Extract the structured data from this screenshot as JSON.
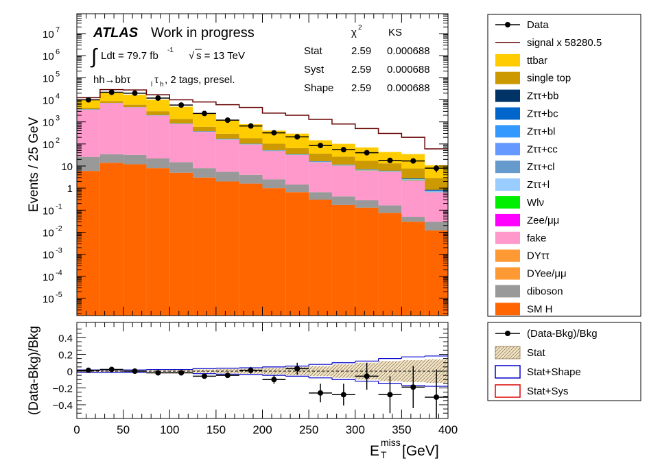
{
  "chart_data": [
    {
      "type": "bar",
      "subtype": "stacked-histogram",
      "yscale": "log",
      "ylabel": "Events / 25 GeV",
      "xlim": [
        0,
        400
      ],
      "ylim_label_range": [
        "10^-5",
        "10^7"
      ],
      "bins": [
        0,
        25,
        50,
        75,
        100,
        125,
        150,
        175,
        200,
        225,
        250,
        275,
        300,
        325,
        350,
        375,
        400
      ],
      "atlas_label": "ATLAS",
      "status_label": "Work in progress",
      "lumi_label": "Ldt = 79.7 fb",
      "lumi_exp": "-1",
      "energy_label": "s = 13 TeV",
      "channel_label": "hh→bbτ",
      "channel_suffix": ", 2 tags, presel.",
      "stats_table": {
        "headers": [
          "",
          "χ",
          "KS"
        ],
        "rows": [
          {
            "label": "Stat",
            "chi2": "2.59",
            "ks": "0.000688"
          },
          {
            "label": "Syst",
            "chi2": "2.59",
            "ks": "0.000688"
          },
          {
            "label": "Shape",
            "chi2": "2.59",
            "ks": "0.000688"
          }
        ]
      },
      "y_ticks": [
        {
          "pow": 7,
          "label": "10",
          "exp": "7"
        },
        {
          "pow": 6,
          "label": "10",
          "exp": "6"
        },
        {
          "pow": 5,
          "label": "10",
          "exp": "5"
        },
        {
          "pow": 4,
          "label": "10",
          "exp": "4"
        },
        {
          "pow": 3,
          "label": "10",
          "exp": "3"
        },
        {
          "pow": 2,
          "label": "10",
          "exp": "2"
        },
        {
          "pow": 1,
          "label": "10",
          "exp": ""
        },
        {
          "pow": 0,
          "label": "1",
          "exp": ""
        },
        {
          "pow": -1,
          "label": "10",
          "exp": "-1"
        },
        {
          "pow": -2,
          "label": "10",
          "exp": "-2"
        },
        {
          "pow": -3,
          "label": "10",
          "exp": "-3"
        },
        {
          "pow": -4,
          "label": "10",
          "exp": "-4"
        },
        {
          "pow": -5,
          "label": "10",
          "exp": "-5"
        }
      ],
      "stack": [
        {
          "name": "SM H",
          "color": "#ff6600",
          "values": [
            6,
            14,
            12,
            8,
            5,
            3,
            2,
            1.6,
            1,
            0.65,
            0.3,
            0.17,
            0.13,
            0.075,
            0.03,
            0.012
          ]
        },
        {
          "name": "diboson",
          "color": "#999999",
          "values": [
            20,
            20,
            20,
            14,
            10,
            5,
            3.5,
            2.4,
            1.5,
            0.8,
            0.35,
            0.25,
            0.15,
            0.09,
            0.02,
            0.018
          ]
        },
        {
          "name": "DYee/μμ",
          "color": "#ff9933",
          "values": [
            0,
            0,
            0,
            0,
            0,
            0,
            0,
            0,
            0,
            0,
            0,
            0,
            0,
            0,
            0,
            0
          ]
        },
        {
          "name": "DYττ",
          "color": "#ff9933",
          "values": [
            0,
            0,
            0,
            0,
            0,
            0,
            0,
            0,
            0,
            0,
            0,
            0,
            0,
            0,
            0,
            0
          ]
        },
        {
          "name": "fake",
          "color": "#ff99cc",
          "values": [
            3500,
            7000,
            4500,
            1900,
            780,
            340,
            150,
            90,
            45,
            30,
            14,
            10,
            6,
            5.4,
            2.2,
            0.6
          ]
        },
        {
          "name": "Zee/μμ",
          "color": "#ff00ff",
          "values": [
            10,
            8,
            6,
            4,
            3,
            2,
            1,
            0.6,
            0.4,
            0.2,
            0.1,
            0.08,
            0.05,
            0.03,
            0.02,
            0.01
          ]
        },
        {
          "name": "Wlν",
          "color": "#00ee00",
          "values": [
            30,
            20,
            15,
            10,
            6,
            3,
            2,
            1.2,
            0.6,
            0.5,
            0.3,
            0.2,
            0.15,
            0.15,
            0.15,
            0.01
          ]
        },
        {
          "name": "Zττ+l",
          "color": "#99ccff",
          "values": [
            40,
            40,
            30,
            20,
            10,
            6,
            3,
            1.5,
            0.8,
            0.5,
            0.3,
            0.2,
            0.1,
            0.08,
            0.05,
            0.04
          ]
        },
        {
          "name": "Zττ+cl",
          "color": "#6699cc",
          "values": [
            30,
            30,
            20,
            15,
            8,
            5,
            2,
            1.2,
            0.6,
            0.4,
            0.25,
            0.15,
            0.1,
            0.06,
            0.05,
            0.03
          ]
        },
        {
          "name": "Zττ+cc",
          "color": "#6699ff",
          "values": [
            20,
            20,
            15,
            10,
            5,
            3,
            1.5,
            0.8,
            0.4,
            0.3,
            0.2,
            0.1,
            0.08,
            0.05,
            0.04,
            0.02
          ]
        },
        {
          "name": "Zττ+bl",
          "color": "#3399ff",
          "values": [
            30,
            30,
            20,
            15,
            8,
            4,
            2,
            1,
            0.6,
            0.4,
            0.25,
            0.15,
            0.1,
            0.06,
            0.05,
            0.03
          ]
        },
        {
          "name": "Zττ+bc",
          "color": "#0066cc",
          "values": [
            20,
            20,
            15,
            10,
            5,
            3,
            1.5,
            0.8,
            0.4,
            0.3,
            0.2,
            0.1,
            0.08,
            0.05,
            0.04,
            0.02
          ]
        },
        {
          "name": "Zττ+bb",
          "color": "#003366",
          "values": [
            60,
            60,
            40,
            30,
            15,
            8,
            4,
            2,
            1.2,
            0.8,
            0.5,
            0.3,
            0.2,
            0.15,
            0.1,
            0.05
          ]
        },
        {
          "name": "single top",
          "color": "#cc9900",
          "values": [
            600,
            1500,
            1300,
            1000,
            500,
            220,
            120,
            80,
            50,
            30,
            20,
            15,
            10,
            7,
            5,
            2
          ]
        },
        {
          "name": "ttbar",
          "color": "#ffcc00",
          "values": [
            5700,
            12000,
            11000,
            7000,
            3500,
            1900,
            880,
            600,
            300,
            230,
            110,
            75,
            52,
            30,
            27,
            8
          ]
        }
      ],
      "signal": {
        "name": "signal x 58280.5",
        "color": "#660000",
        "values": [
          12500,
          29000,
          28000,
          17000,
          10000,
          8000,
          6000,
          4500,
          2500,
          2000,
          1300,
          800,
          500,
          300,
          200,
          60
        ]
      },
      "data": {
        "name": "Data",
        "values": [
          10000,
          22000,
          20000,
          12000,
          5800,
          2400,
          1200,
          650,
          320,
          210,
          85,
          55,
          40,
          18,
          17,
          8
        ]
      },
      "legend": [
        {
          "label": "Data",
          "type": "marker"
        },
        {
          "label": "signal x 58280.5",
          "type": "line",
          "color": "#660000"
        },
        {
          "label": "ttbar",
          "type": "fill",
          "color": "#ffcc00"
        },
        {
          "label": "single top",
          "type": "fill",
          "color": "#cc9900"
        },
        {
          "label": "Zττ+bb",
          "type": "fill",
          "color": "#003366"
        },
        {
          "label": "Zττ+bc",
          "type": "fill",
          "color": "#0066cc"
        },
        {
          "label": "Zττ+bl",
          "type": "fill",
          "color": "#3399ff"
        },
        {
          "label": "Zττ+cc",
          "type": "fill",
          "color": "#6699ff"
        },
        {
          "label": "Zττ+cl",
          "type": "fill",
          "color": "#6699cc"
        },
        {
          "label": "Zττ+l",
          "type": "fill",
          "color": "#99ccff"
        },
        {
          "label": "Wlν",
          "type": "fill",
          "color": "#00ee00"
        },
        {
          "label": "Zee/μμ",
          "type": "fill",
          "color": "#ff00ff"
        },
        {
          "label": "fake",
          "type": "fill",
          "color": "#ff99cc"
        },
        {
          "label": "DYττ",
          "type": "fill",
          "color": "#ff9933"
        },
        {
          "label": "DYee/μμ",
          "type": "fill",
          "color": "#ff9933"
        },
        {
          "label": "diboson",
          "type": "fill",
          "color": "#999999"
        },
        {
          "label": "SM H",
          "type": "fill",
          "color": "#ff6600"
        }
      ]
    },
    {
      "type": "scatter",
      "subtype": "ratio",
      "ylabel": "(Data-Bkg)/Bkg",
      "xlabel": "E",
      "xlabel_sup": "miss",
      "xlabel_sub": "T",
      "xlabel_unit": " [GeV]",
      "xlim": [
        0,
        400
      ],
      "ylim": [
        -0.55,
        0.55
      ],
      "x_ticks": [
        "0",
        "50",
        "100",
        "150",
        "200",
        "250",
        "300",
        "350",
        "400"
      ],
      "y_ticks": [
        "0.4",
        "0.2",
        "0",
        "−0.2",
        "−0.4"
      ],
      "y_tick_values": [
        0.4,
        0.2,
        0,
        -0.2,
        -0.4
      ],
      "x": [
        12.5,
        37.5,
        62.5,
        87.5,
        112.5,
        137.5,
        162.5,
        187.5,
        212.5,
        237.5,
        262.5,
        287.5,
        312.5,
        337.5,
        362.5,
        387.5
      ],
      "values": [
        0.01,
        0.02,
        0,
        -0.02,
        -0.02,
        -0.06,
        -0.05,
        0.01,
        -0.1,
        0.03,
        -0.26,
        -0.28,
        -0.06,
        -0.28,
        -0.19,
        -0.31
      ],
      "errors": [
        0.01,
        0.01,
        0.01,
        0.01,
        0.015,
        0.02,
        0.03,
        0.04,
        0.05,
        0.07,
        0.11,
        0.13,
        0.16,
        0.22,
        0.25,
        0.33
      ],
      "stat_band": [
        0.01,
        0.01,
        0.01,
        0.01,
        0.015,
        0.02,
        0.025,
        0.03,
        0.04,
        0.05,
        0.06,
        0.08,
        0.1,
        0.12,
        0.13,
        0.14
      ],
      "shape_band": [
        0.015,
        0.015,
        0.015,
        0.02,
        0.02,
        0.03,
        0.035,
        0.04,
        0.05,
        0.06,
        0.08,
        0.1,
        0.12,
        0.15,
        0.17,
        0.18
      ],
      "legend": [
        {
          "label": "(Data-Bkg)/Bkg",
          "type": "marker"
        },
        {
          "label": "Stat",
          "type": "hatch"
        },
        {
          "label": "Stat+Shape",
          "type": "box",
          "color": "#0000cc"
        },
        {
          "label": "Stat+Sys",
          "type": "box",
          "color": "#dd0000"
        }
      ]
    }
  ]
}
